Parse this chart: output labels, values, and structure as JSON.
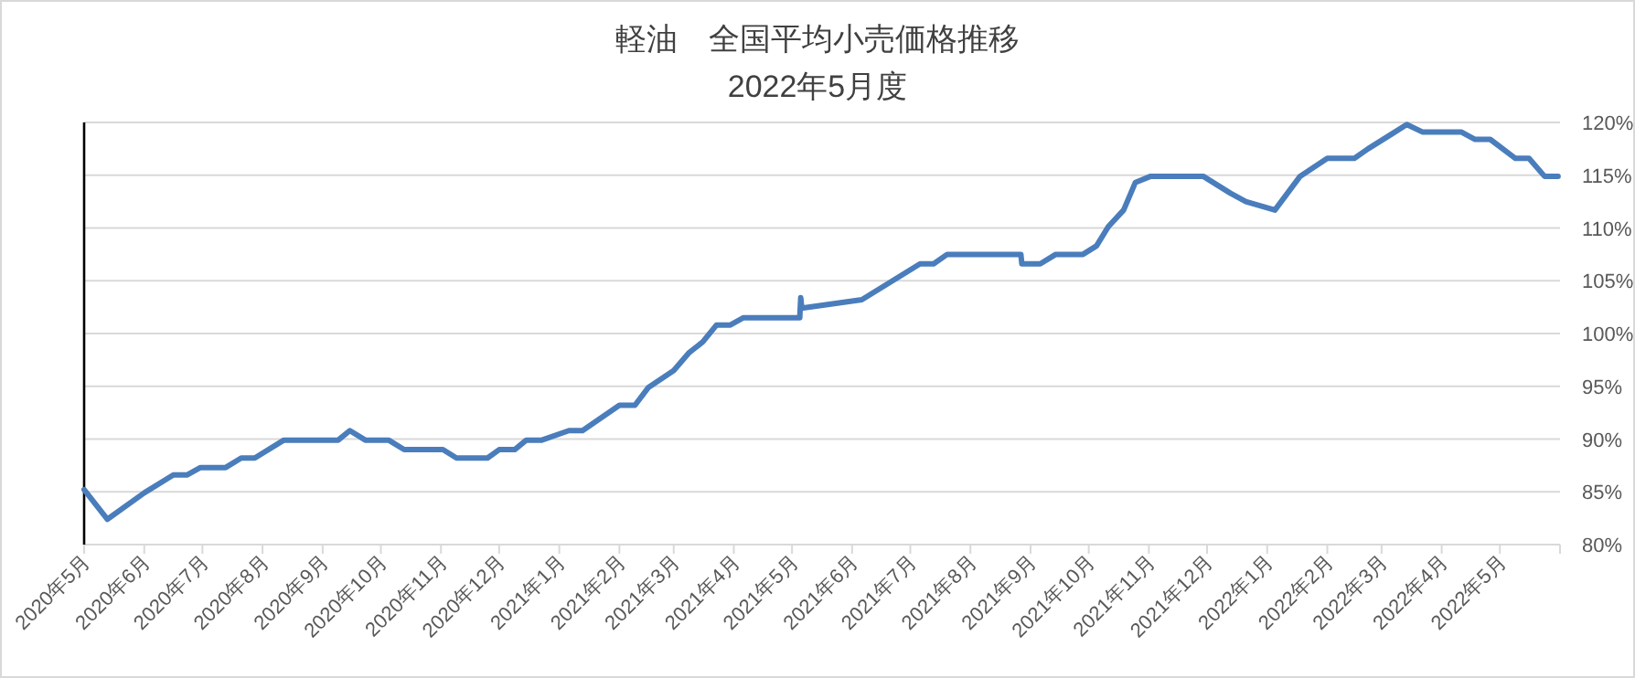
{
  "chart_data": {
    "type": "line",
    "title": "軽油　全国平均小売価格推移",
    "subtitle": "2022年5月度",
    "x": [
      "2020-05-01",
      "2020-05-13",
      "2020-06-01",
      "2020-06-16",
      "2020-06-23",
      "2020-06-30",
      "2020-07-13",
      "2020-07-21",
      "2020-07-28",
      "2020-08-12",
      "2020-09-09",
      "2020-09-15",
      "2020-09-23",
      "2020-10-05",
      "2020-10-13",
      "2020-11-02",
      "2020-11-09",
      "2020-11-25",
      "2020-12-01",
      "2020-12-09",
      "2020-12-15",
      "2020-12-23",
      "2021-01-06",
      "2021-01-13",
      "2021-02-01",
      "2021-02-09",
      "2021-02-16",
      "2021-03-01",
      "2021-03-09",
      "2021-03-16",
      "2021-03-23",
      "2021-03-30",
      "2021-04-06",
      "2021-05-05",
      "2021-05-05T12:00",
      "2021-05-06",
      "2021-06-06",
      "2021-07-06",
      "2021-07-13",
      "2021-07-20",
      "2021-08-27",
      "2021-08-27T12:00",
      "2021-09-06",
      "2021-09-14",
      "2021-09-28",
      "2021-10-05",
      "2021-10-11",
      "2021-10-19",
      "2021-10-25",
      "2021-11-02",
      "2021-11-29",
      "2021-12-06",
      "2021-12-13",
      "2021-12-21",
      "2022-01-05",
      "2022-01-18",
      "2022-02-01",
      "2022-02-15",
      "2022-02-22",
      "2022-03-14",
      "2022-03-22",
      "2022-04-11",
      "2022-04-18",
      "2022-04-26",
      "2022-05-09",
      "2022-05-16",
      "2022-05-24",
      "2022-05-31"
    ],
    "series": [
      {
        "color": "#4a7dbc",
        "values": [
          85.2,
          82.4,
          84.9,
          86.6,
          86.6,
          87.3,
          87.3,
          88.2,
          88.2,
          89.9,
          89.9,
          90.8,
          89.9,
          89.9,
          89.0,
          89.0,
          88.2,
          88.2,
          89.0,
          89.0,
          89.9,
          89.9,
          90.8,
          90.8,
          93.2,
          93.2,
          94.9,
          96.5,
          98.2,
          99.2,
          100.8,
          100.8,
          101.5,
          101.5,
          103.4,
          102.4,
          103.2,
          106.6,
          106.6,
          107.5,
          107.5,
          106.6,
          106.6,
          107.5,
          107.5,
          108.3,
          110.1,
          111.7,
          114.3,
          114.9,
          114.9,
          114.1,
          113.3,
          112.5,
          111.7,
          114.9,
          116.6,
          116.6,
          117.5,
          119.8,
          119.1,
          119.1,
          118.4,
          118.4,
          116.6,
          116.6,
          114.9,
          114.9
        ]
      }
    ],
    "xlim": [
      "2020-05-01",
      "2022-06-01"
    ],
    "xticks": [
      {
        "value": "2020-05-01",
        "label": "2020年5月"
      },
      {
        "value": "2020-06-01",
        "label": "2020年6月"
      },
      {
        "value": "2020-07-01",
        "label": "2020年7月"
      },
      {
        "value": "2020-08-01",
        "label": "2020年8月"
      },
      {
        "value": "2020-09-01",
        "label": "2020年9月"
      },
      {
        "value": "2020-10-01",
        "label": "2020年10月"
      },
      {
        "value": "2020-11-01",
        "label": "2020年11月"
      },
      {
        "value": "2020-12-01",
        "label": "2020年12月"
      },
      {
        "value": "2021-01-01",
        "label": "2021年1月"
      },
      {
        "value": "2021-02-01",
        "label": "2021年2月"
      },
      {
        "value": "2021-03-01",
        "label": "2021年3月"
      },
      {
        "value": "2021-04-01",
        "label": "2021年4月"
      },
      {
        "value": "2021-05-01",
        "label": "2021年5月"
      },
      {
        "value": "2021-06-01",
        "label": "2021年6月"
      },
      {
        "value": "2021-07-01",
        "label": "2021年7月"
      },
      {
        "value": "2021-08-01",
        "label": "2021年8月"
      },
      {
        "value": "2021-09-01",
        "label": "2021年9月"
      },
      {
        "value": "2021-10-01",
        "label": "2021年10月"
      },
      {
        "value": "2021-11-01",
        "label": "2021年11月"
      },
      {
        "value": "2021-12-01",
        "label": "2021年12月"
      },
      {
        "value": "2022-01-01",
        "label": "2022年1月"
      },
      {
        "value": "2022-02-01",
        "label": "2022年2月"
      },
      {
        "value": "2022-03-01",
        "label": "2022年3月"
      },
      {
        "value": "2022-04-01",
        "label": "2022年4月"
      },
      {
        "value": "2022-05-01",
        "label": "2022年5月"
      },
      {
        "value": "2022-06-01",
        "label": null
      }
    ],
    "ylim": [
      80,
      120
    ],
    "yticks": [
      {
        "value": 80,
        "label": "80%"
      },
      {
        "value": 85,
        "label": "85%"
      },
      {
        "value": 90,
        "label": "90%"
      },
      {
        "value": 95,
        "label": "95%"
      },
      {
        "value": 100,
        "label": "100%"
      },
      {
        "value": 105,
        "label": "105%"
      },
      {
        "value": 110,
        "label": "110%"
      },
      {
        "value": 115,
        "label": "115%"
      },
      {
        "value": 120,
        "label": "120%"
      }
    ],
    "grid": "y"
  }
}
